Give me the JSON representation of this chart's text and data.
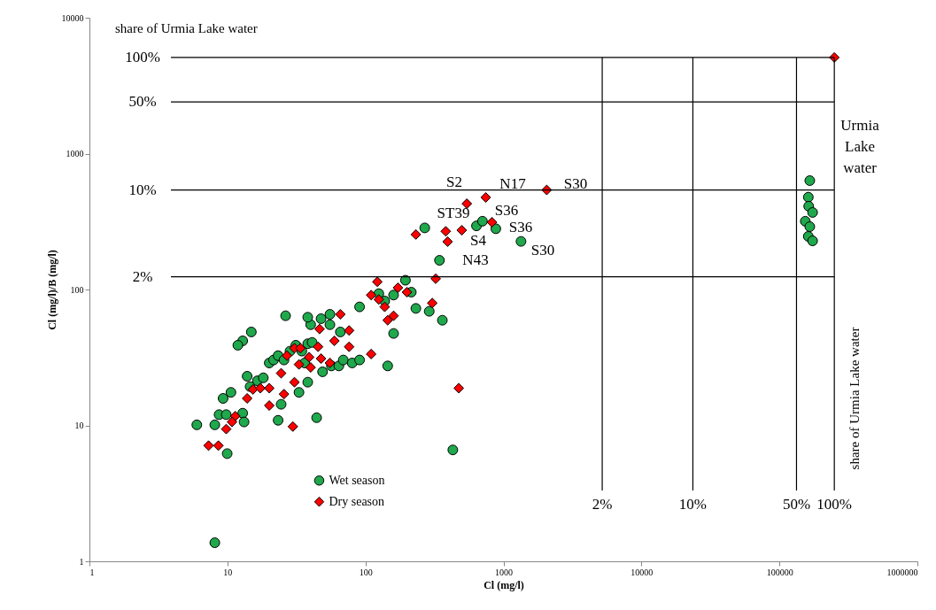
{
  "chart_data": {
    "type": "scatter",
    "xlabel": "Cl (mg/l)",
    "ylabel": "Cl (mg/l)/B (mg/l)",
    "log": "xy",
    "grid": false,
    "legend": "bottom left",
    "xlim": [
      1,
      1000000
    ],
    "xticks": [
      1,
      10,
      100,
      1000,
      10000,
      100000,
      1000000
    ],
    "ylim": [
      1,
      10000
    ],
    "yticks": [
      1,
      10,
      100,
      1000,
      10000
    ],
    "series": [
      {
        "name": "Wet season",
        "color": "#1fa84c",
        "marker": "circle",
        "x": [
          6.0,
          8.1,
          8.1,
          8.7,
          9.8,
          9.96,
          9.3,
          10.6,
          12.9,
          13.2,
          13.9,
          14.6,
          16.5,
          18.2,
          20.1,
          21.6,
          23.3,
          25.7,
          28.4,
          31.3,
          34.6,
          38.2,
          41.1,
          36.3,
          38.2,
          33.0,
          24.5,
          23.3,
          44.3,
          48.9,
          56.7,
          64.2,
          69.1,
          80.2,
          90.7,
          65.8,
          55.3,
          47.7,
          55.3,
          40.1,
          38.2,
          26.4,
          14.9,
          12.9,
          11.9,
          145,
          160,
          90.7,
          125,
          138,
          160,
          195,
          215,
          232,
          290,
          361,
          344,
          269,
          638,
          705,
          881,
          1341,
          430,
          166000,
          162000,
          163000,
          174000,
          154000,
          166000,
          162000,
          174000
        ],
        "values": [
          10.1,
          1.37,
          10.1,
          12.0,
          12.0,
          6.2,
          15.8,
          17.5,
          12.3,
          10.6,
          23.0,
          19.3,
          21.3,
          22.4,
          28.8,
          30.3,
          32.6,
          30.3,
          35.2,
          38.9,
          35.2,
          39.9,
          40.8,
          28.8,
          20.8,
          17.5,
          14.3,
          10.9,
          11.4,
          24.8,
          27.4,
          27.4,
          30.3,
          28.8,
          30.3,
          48.7,
          55.1,
          61.0,
          65.7,
          55.1,
          62.5,
          64.1,
          48.7,
          41.9,
          38.9,
          27.4,
          47.5,
          74.5,
          93.2,
          82.3,
          91.0,
          117,
          95.6,
          72.6,
          69.1,
          59.4,
          164,
          284,
          294,
          318,
          280,
          226,
          6.6,
          633,
          478,
          410,
          369,
          318,
          290,
          246,
          228
        ]
      },
      {
        "name": "Dry season",
        "color": "#ff0000",
        "marker": "diamond",
        "x": [
          7.3,
          8.6,
          9.8,
          11.4,
          10.8,
          13.9,
          15.3,
          17.3,
          20.1,
          20.1,
          25.7,
          29.8,
          24.5,
          27.0,
          30.6,
          33.0,
          30.6,
          33.8,
          39.1,
          40.1,
          45.4,
          47.7,
          55.3,
          59.6,
          76.2,
          110,
          46.5,
          65.8,
          76.2,
          122,
          110,
          125,
          138,
          145,
          160,
          172,
          200,
          232,
          323,
          305,
          475,
          543,
          745,
          2060,
          826,
          499,
          382,
          394,
          250000
        ],
        "values": [
          7.1,
          7.1,
          9.4,
          11.7,
          10.6,
          15.8,
          18.4,
          18.8,
          18.8,
          14.0,
          17.0,
          9.8,
          24.2,
          32.6,
          37.0,
          28.1,
          20.8,
          37.0,
          31.8,
          26.7,
          37.9,
          31.0,
          28.8,
          41.9,
          37.9,
          33.5,
          51.2,
          65.7,
          49.9,
          114,
          91.0,
          84.4,
          74.5,
          59.4,
          64.1,
          103,
          95.6,
          254,
          120,
          79.5,
          18.8,
          428,
          476,
          540,
          313,
          273,
          268,
          225,
          5100
        ]
      }
    ],
    "ref_lines": [
      {
        "axis": "y",
        "value": 5100
      },
      {
        "axis": "y",
        "value": 2400
      },
      {
        "axis": "y",
        "value": 540
      },
      {
        "axis": "y",
        "value": 124
      },
      {
        "axis": "x",
        "value": 5200
      },
      {
        "axis": "x",
        "value": 23600
      },
      {
        "axis": "x",
        "value": 133000
      },
      {
        "axis": "x",
        "value": 250000
      }
    ],
    "annotations": [
      "share of Urmia Lake water",
      "share of Urmia Lake water",
      "S2",
      "N17",
      "S30",
      "ST39",
      "S36",
      "S36",
      "S4",
      "N43",
      "S30",
      "Urmia\nLake\nwater",
      "100%",
      "50%",
      "10%",
      "2%",
      "2%",
      "10%",
      "50%",
      "100%"
    ]
  }
}
